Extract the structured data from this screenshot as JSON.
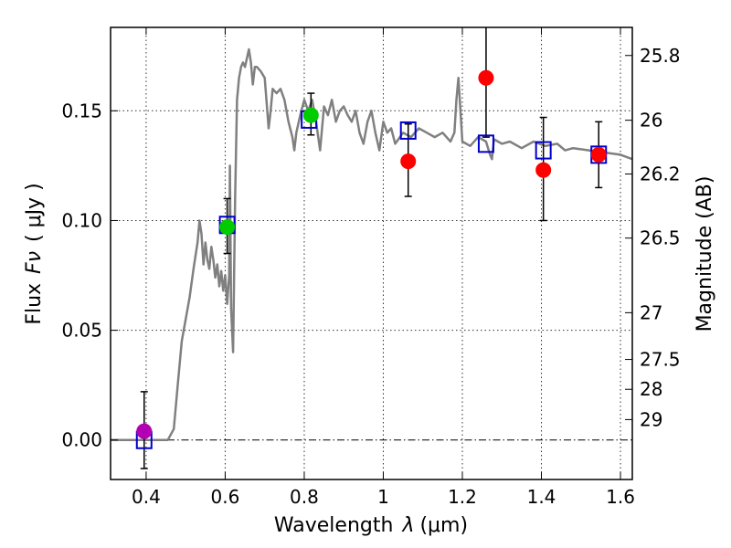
{
  "chart_data": {
    "type": "scatter",
    "xlabel_text": "Wavelength",
    "xlabel_symbol": "λ",
    "xlabel_unit": "(μm)",
    "ylabel_text": "Flux",
    "ylabel_symbol": "Fν",
    "ylabel_unit": "( μJy )",
    "y2label": "Magnitude (AB)",
    "xlim": [
      0.31,
      1.63
    ],
    "ylim": [
      -0.018,
      0.188
    ],
    "grid": true,
    "xticks": [
      {
        "v": 0.4,
        "label": "0.4"
      },
      {
        "v": 0.6,
        "label": "0.6"
      },
      {
        "v": 0.8,
        "label": "0.8"
      },
      {
        "v": 1.0,
        "label": "1"
      },
      {
        "v": 1.2,
        "label": "1.2"
      },
      {
        "v": 1.4,
        "label": "1.4"
      },
      {
        "v": 1.6,
        "label": "1.6"
      }
    ],
    "yticks": [
      {
        "v": 0.0,
        "label": "0.00"
      },
      {
        "v": 0.05,
        "label": "0.05"
      },
      {
        "v": 0.1,
        "label": "0.10"
      },
      {
        "v": 0.15,
        "label": "0.15"
      }
    ],
    "mag_ticks": [
      {
        "label": "25.8",
        "v": 0.1752
      },
      {
        "label": "26",
        "v": 0.1457
      },
      {
        "label": "26.2",
        "v": 0.1212
      },
      {
        "label": "26.5",
        "v": 0.092
      },
      {
        "label": "27",
        "v": 0.058
      },
      {
        "label": "27.5",
        "v": 0.0367
      },
      {
        "label": "28",
        "v": 0.0231
      },
      {
        "label": "29",
        "v": 0.0093
      }
    ],
    "model_spectrum": {
      "color": "#808080",
      "x": [
        0.31,
        0.44,
        0.455,
        0.47,
        0.48,
        0.49,
        0.5,
        0.51,
        0.52,
        0.53,
        0.535,
        0.54,
        0.545,
        0.55,
        0.555,
        0.56,
        0.565,
        0.57,
        0.575,
        0.58,
        0.585,
        0.59,
        0.595,
        0.6,
        0.605,
        0.61,
        0.612,
        0.615,
        0.62,
        0.625,
        0.63,
        0.635,
        0.64,
        0.645,
        0.65,
        0.66,
        0.665,
        0.67,
        0.675,
        0.68,
        0.69,
        0.7,
        0.71,
        0.715,
        0.72,
        0.73,
        0.74,
        0.75,
        0.76,
        0.77,
        0.775,
        0.78,
        0.79,
        0.8,
        0.81,
        0.82,
        0.83,
        0.84,
        0.85,
        0.86,
        0.87,
        0.88,
        0.89,
        0.9,
        0.91,
        0.92,
        0.93,
        0.94,
        0.95,
        0.96,
        0.97,
        0.98,
        0.99,
        1.0,
        1.01,
        1.02,
        1.03,
        1.05,
        1.07,
        1.09,
        1.11,
        1.13,
        1.15,
        1.17,
        1.18,
        1.185,
        1.19,
        1.2,
        1.22,
        1.24,
        1.26,
        1.27,
        1.275,
        1.28,
        1.3,
        1.32,
        1.35,
        1.38,
        1.41,
        1.44,
        1.46,
        1.48,
        1.52,
        1.56,
        1.6,
        1.63
      ],
      "y": [
        0.0,
        0.0,
        0.0,
        0.005,
        0.025,
        0.045,
        0.055,
        0.065,
        0.078,
        0.09,
        0.1,
        0.094,
        0.08,
        0.09,
        0.082,
        0.078,
        0.088,
        0.082,
        0.074,
        0.08,
        0.07,
        0.077,
        0.068,
        0.075,
        0.062,
        0.075,
        0.125,
        0.06,
        0.04,
        0.11,
        0.155,
        0.165,
        0.17,
        0.172,
        0.17,
        0.178,
        0.172,
        0.162,
        0.17,
        0.17,
        0.168,
        0.165,
        0.142,
        0.15,
        0.16,
        0.158,
        0.16,
        0.155,
        0.145,
        0.138,
        0.132,
        0.14,
        0.148,
        0.155,
        0.15,
        0.155,
        0.145,
        0.132,
        0.152,
        0.148,
        0.155,
        0.145,
        0.15,
        0.152,
        0.148,
        0.145,
        0.15,
        0.14,
        0.135,
        0.145,
        0.15,
        0.14,
        0.132,
        0.145,
        0.14,
        0.142,
        0.135,
        0.14,
        0.138,
        0.142,
        0.14,
        0.138,
        0.14,
        0.136,
        0.14,
        0.155,
        0.165,
        0.136,
        0.134,
        0.138,
        0.136,
        0.13,
        0.128,
        0.137,
        0.135,
        0.136,
        0.133,
        0.136,
        0.134,
        0.135,
        0.132,
        0.133,
        0.132,
        0.131,
        0.13,
        0.128
      ]
    },
    "model_points": {
      "color": "#0000cc",
      "x": [
        0.395,
        0.605,
        0.812,
        1.063,
        1.26,
        1.405,
        1.545
      ],
      "y": [
        0.0,
        0.098,
        0.146,
        0.141,
        0.135,
        0.132,
        0.13
      ]
    },
    "observed": [
      {
        "x": 0.395,
        "y": 0.004,
        "err_lo": 0.017,
        "err_hi": 0.018,
        "color": "#b300b3"
      },
      {
        "x": 0.605,
        "y": 0.097,
        "err_lo": 0.012,
        "err_hi": 0.013,
        "color": "#00cc00"
      },
      {
        "x": 0.817,
        "y": 0.148,
        "err_lo": 0.009,
        "err_hi": 0.01,
        "color": "#00cc00"
      },
      {
        "x": 1.063,
        "y": 0.127,
        "err_lo": 0.016,
        "err_hi": 0.017,
        "color": "#ff0000"
      },
      {
        "x": 1.26,
        "y": 0.165,
        "err_lo": 0.027,
        "err_hi": 0.025,
        "color": "#ff0000"
      },
      {
        "x": 1.405,
        "y": 0.123,
        "err_lo": 0.023,
        "err_hi": 0.024,
        "color": "#ff0000"
      },
      {
        "x": 1.545,
        "y": 0.13,
        "err_lo": 0.015,
        "err_hi": 0.015,
        "color": "#ff0000"
      }
    ]
  }
}
